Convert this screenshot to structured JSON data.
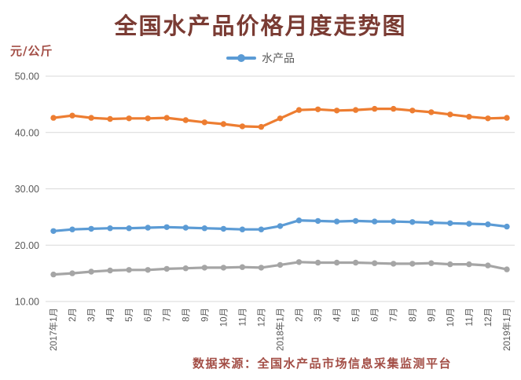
{
  "title": "全国水产品价格月度走势图",
  "y_axis_unit": "元/公斤",
  "legend": {
    "label": "水产品",
    "color": "#5B9BD5"
  },
  "footer": {
    "source_text": "数据来源：全国水产品市场信息采集监测平台"
  },
  "colors": {
    "orange_series": "#ED7D31",
    "blue_series": "#5B9BD5",
    "gray_series": "#A5A5A5",
    "gridline": "#D9D9D9",
    "tick_label": "#595959",
    "title_text": "#7a3b33",
    "accent_text": "#a34e46"
  },
  "chart_data": {
    "type": "line",
    "title": "全国水产品价格月度走势图",
    "xlabel": "",
    "ylabel": "元/公斤",
    "ylim": [
      10,
      50
    ],
    "grid": true,
    "legend_position": "top-center",
    "legend_entries": [
      "水产品"
    ],
    "y_ticks": [
      {
        "label": "50.00",
        "value": 50
      },
      {
        "label": "40.00",
        "value": 40
      },
      {
        "label": "30.00",
        "value": 30
      },
      {
        "label": "20.00",
        "value": 20
      },
      {
        "label": "10.00",
        "value": 10
      }
    ],
    "categories": [
      "2017年1月",
      "2月",
      "3月",
      "4月",
      "5月",
      "6月",
      "7月",
      "8月",
      "9月",
      "10月",
      "11月",
      "12月",
      "2018年1月",
      "2月",
      "3月",
      "4月",
      "5月",
      "6月",
      "7月",
      "8月",
      "9月",
      "10月",
      "11月",
      "12月",
      "2019年1月"
    ],
    "series": [
      {
        "name": "",
        "color": "#ED7D31",
        "values": [
          42.6,
          43.0,
          42.6,
          42.4,
          42.5,
          42.5,
          42.6,
          42.2,
          41.8,
          41.5,
          41.1,
          41.0,
          42.5,
          44.0,
          44.1,
          43.9,
          44.0,
          44.2,
          44.2,
          43.9,
          43.6,
          43.2,
          42.8,
          42.5,
          42.6
        ]
      },
      {
        "name": "水产品",
        "color": "#5B9BD5",
        "values": [
          22.5,
          22.8,
          22.9,
          23.0,
          23.0,
          23.1,
          23.2,
          23.1,
          23.0,
          22.9,
          22.8,
          22.8,
          23.4,
          24.4,
          24.3,
          24.2,
          24.3,
          24.2,
          24.2,
          24.1,
          24.0,
          23.9,
          23.8,
          23.7,
          23.3
        ]
      },
      {
        "name": "",
        "color": "#A5A5A5",
        "values": [
          14.8,
          15.0,
          15.3,
          15.5,
          15.6,
          15.6,
          15.8,
          15.9,
          16.0,
          16.0,
          16.1,
          16.0,
          16.5,
          17.0,
          16.9,
          16.9,
          16.9,
          16.8,
          16.7,
          16.7,
          16.8,
          16.6,
          16.6,
          16.4,
          15.7
        ]
      }
    ]
  }
}
